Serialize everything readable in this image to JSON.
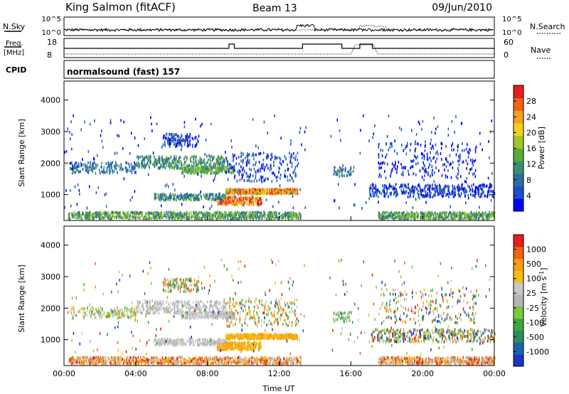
{
  "header": {
    "station": "King Salmon (fitACF)",
    "beam": "Beam 13",
    "date": "09/Jun/2010"
  },
  "noise_panel": {
    "left_label": "N.Sky",
    "left_ticks": [
      "10^5",
      "10^0"
    ],
    "right_ticks": [
      "10^5",
      "10^0"
    ],
    "right_label": "N.Search"
  },
  "freq_panel": {
    "left_label_line1": "Freq.",
    "left_label_line2": "[MHz]",
    "left_ticks": [
      "18",
      "8"
    ],
    "right_ticks": [
      "60",
      "0"
    ],
    "right_label": "Nave"
  },
  "cpid": {
    "label": "CPID",
    "value": "normalsound (fast) 157"
  },
  "chart_data": {
    "type": "heatmap",
    "x_ticks": [
      "00:00",
      "04:00",
      "08:00",
      "12:00",
      "16:00",
      "20:00",
      "00:00"
    ],
    "x_hours": [
      0,
      4,
      8,
      12,
      16,
      20,
      24
    ],
    "xlabel": "Time UT",
    "xlim": [
      0,
      24
    ],
    "ylim": [
      180,
      4600
    ],
    "y_ticks": [
      1000,
      2000,
      3000,
      4000
    ],
    "ylabel": "Slant Range [km]",
    "power_panel": {
      "colorbar_label": "Power [dB]",
      "colorbar_ticks": [
        "28",
        "24",
        "20",
        "16",
        "12",
        "8",
        "4"
      ],
      "colors": [
        "#0000ff",
        "#1e4fc8",
        "#2e6e9a",
        "#3d8f6c",
        "#5aaa3c",
        "#9bc82a",
        "#f0d21e",
        "#f5a01e",
        "#f06414",
        "#e61e1e"
      ]
    },
    "velocity_panel": {
      "colorbar_label": "Velocity [m s^-1]",
      "colorbar_ticks": [
        "1000",
        "500",
        "100",
        "25",
        "-25",
        "-100",
        "-500",
        "-1000"
      ],
      "colors": [
        "#1e32c8",
        "#1e64aa",
        "#2e8c5a",
        "#3ca83c",
        "#7cc83c",
        "#b4b4b4",
        "#c8c8c8",
        "#f5be14",
        "#f5a014",
        "#f06414",
        "#e61e1e"
      ]
    }
  }
}
